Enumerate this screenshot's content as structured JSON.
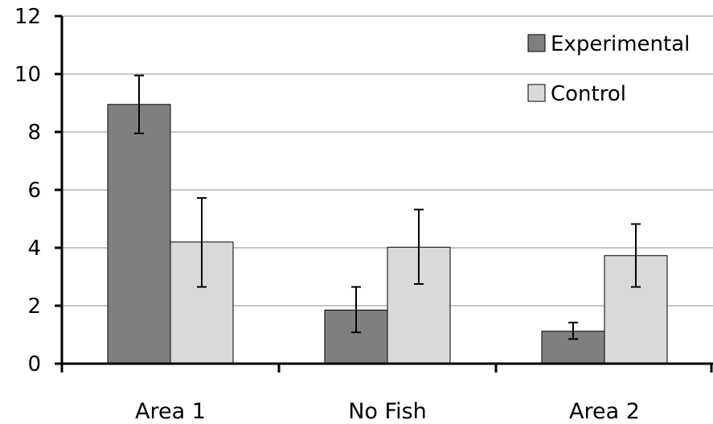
{
  "chart_data": {
    "type": "bar",
    "categories": [
      "Area 1",
      "No Fish",
      "Area 2"
    ],
    "series": [
      {
        "name": "Experimental",
        "color": "#7f7f7f",
        "values": [
          8.95,
          1.85,
          1.12
        ],
        "error_low": [
          7.95,
          1.08,
          0.85
        ],
        "error_high": [
          9.95,
          2.65,
          1.42
        ]
      },
      {
        "name": "Control",
        "color": "#d9d9d9",
        "values": [
          4.2,
          4.02,
          3.73
        ],
        "error_low": [
          2.65,
          2.75,
          2.65
        ],
        "error_high": [
          5.72,
          5.32,
          4.82
        ]
      }
    ],
    "ylim": [
      0,
      12
    ],
    "yticks": [
      0,
      2,
      4,
      6,
      8,
      10,
      12
    ],
    "grid": true,
    "legend_position": "top-right",
    "title": "",
    "xlabel": "",
    "ylabel": ""
  }
}
